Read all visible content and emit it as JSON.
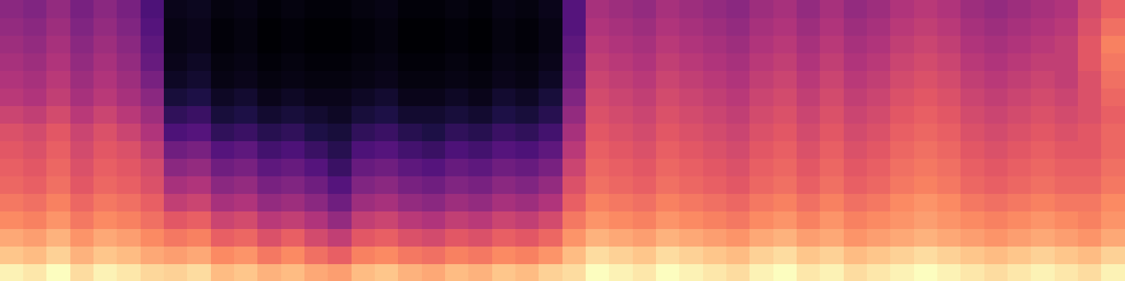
{
  "chart_data": {
    "type": "heatmap",
    "tick_labels": false,
    "cells": [
      [
        90,
        88,
        92,
        86,
        90,
        88,
        85,
        84,
        86,
        80,
        82,
        78,
        80,
        76,
        74,
        80,
        82,
        78,
        76,
        80,
        78,
        82,
        80,
        84,
        86,
        92,
        90,
        88,
        92,
        90,
        88,
        86,
        90,
        92,
        88,
        90,
        86,
        88,
        90,
        92,
        90,
        88,
        86,
        88,
        90,
        88,
        86,
        90
      ],
      [
        82,
        80,
        84,
        78,
        82,
        80,
        76,
        74,
        76,
        70,
        72,
        66,
        70,
        64,
        60,
        68,
        70,
        66,
        64,
        68,
        66,
        70,
        68,
        72,
        80,
        86,
        84,
        82,
        86,
        84,
        82,
        80,
        84,
        86,
        82,
        84,
        80,
        82,
        84,
        86,
        84,
        82,
        80,
        82,
        84,
        82,
        80,
        84
      ],
      [
        76,
        74,
        78,
        72,
        76,
        74,
        70,
        66,
        68,
        60,
        62,
        56,
        60,
        54,
        50,
        58,
        60,
        56,
        54,
        58,
        56,
        60,
        58,
        62,
        72,
        78,
        76,
        74,
        78,
        76,
        74,
        72,
        76,
        78,
        74,
        76,
        72,
        74,
        76,
        78,
        76,
        74,
        72,
        74,
        76,
        74,
        72,
        76
      ],
      [
        70,
        68,
        72,
        66,
        70,
        68,
        64,
        58,
        60,
        52,
        54,
        48,
        50,
        46,
        40,
        50,
        52,
        48,
        46,
        50,
        48,
        52,
        50,
        54,
        66,
        72,
        70,
        68,
        72,
        70,
        68,
        66,
        70,
        72,
        68,
        72,
        68,
        70,
        72,
        74,
        72,
        70,
        68,
        70,
        72,
        70,
        68,
        72
      ],
      [
        66,
        64,
        68,
        62,
        66,
        64,
        60,
        50,
        52,
        44,
        46,
        40,
        42,
        38,
        32,
        42,
        44,
        40,
        38,
        42,
        40,
        44,
        42,
        46,
        60,
        68,
        66,
        64,
        68,
        66,
        64,
        62,
        66,
        68,
        64,
        68,
        64,
        66,
        70,
        72,
        70,
        66,
        64,
        66,
        68,
        66,
        66,
        70
      ],
      [
        62,
        60,
        64,
        58,
        62,
        60,
        56,
        44,
        46,
        38,
        40,
        34,
        36,
        32,
        26,
        36,
        38,
        34,
        32,
        36,
        34,
        38,
        36,
        40,
        56,
        64,
        62,
        60,
        64,
        62,
        60,
        58,
        62,
        64,
        60,
        64,
        60,
        62,
        66,
        68,
        66,
        62,
        60,
        62,
        64,
        62,
        62,
        66
      ],
      [
        60,
        58,
        62,
        56,
        60,
        58,
        54,
        38,
        40,
        32,
        34,
        28,
        30,
        26,
        20,
        30,
        32,
        28,
        26,
        30,
        28,
        32,
        30,
        34,
        52,
        62,
        60,
        58,
        62,
        60,
        58,
        56,
        60,
        62,
        58,
        62,
        58,
        60,
        64,
        66,
        64,
        60,
        58,
        60,
        62,
        60,
        60,
        64
      ],
      [
        58,
        56,
        60,
        54,
        58,
        56,
        50,
        32,
        34,
        26,
        28,
        22,
        24,
        20,
        16,
        24,
        26,
        22,
        20,
        24,
        22,
        26,
        24,
        28,
        48,
        60,
        58,
        56,
        60,
        58,
        56,
        54,
        58,
        60,
        56,
        60,
        56,
        58,
        62,
        64,
        62,
        58,
        56,
        58,
        60,
        58,
        58,
        62
      ],
      [
        56,
        54,
        58,
        52,
        56,
        52,
        46,
        24,
        26,
        18,
        20,
        16,
        18,
        14,
        12,
        18,
        20,
        16,
        14,
        18,
        16,
        20,
        18,
        22,
        44,
        58,
        56,
        54,
        58,
        56,
        54,
        52,
        56,
        58,
        54,
        58,
        54,
        56,
        60,
        62,
        60,
        56,
        54,
        56,
        58,
        56,
        58,
        62
      ],
      [
        52,
        50,
        54,
        48,
        52,
        48,
        42,
        18,
        20,
        12,
        14,
        10,
        12,
        10,
        8,
        12,
        14,
        10,
        10,
        12,
        10,
        14,
        12,
        16,
        40,
        56,
        54,
        52,
        56,
        54,
        52,
        50,
        54,
        56,
        52,
        56,
        52,
        54,
        58,
        60,
        58,
        54,
        52,
        54,
        56,
        54,
        56,
        60
      ],
      [
        48,
        46,
        50,
        44,
        48,
        44,
        38,
        12,
        14,
        8,
        10,
        6,
        8,
        6,
        6,
        8,
        10,
        6,
        6,
        8,
        6,
        10,
        8,
        12,
        36,
        54,
        52,
        50,
        54,
        52,
        50,
        48,
        52,
        54,
        50,
        54,
        50,
        52,
        56,
        58,
        56,
        52,
        50,
        52,
        54,
        52,
        56,
        62
      ],
      [
        46,
        44,
        48,
        42,
        46,
        42,
        34,
        8,
        10,
        5,
        6,
        4,
        5,
        4,
        4,
        5,
        6,
        4,
        4,
        5,
        4,
        6,
        5,
        8,
        32,
        52,
        50,
        48,
        52,
        50,
        48,
        46,
        50,
        52,
        48,
        52,
        48,
        50,
        54,
        56,
        54,
        50,
        48,
        50,
        52,
        50,
        56,
        64
      ],
      [
        44,
        42,
        46,
        40,
        44,
        40,
        30,
        6,
        8,
        4,
        5,
        3,
        4,
        3,
        3,
        4,
        5,
        3,
        3,
        4,
        3,
        5,
        4,
        6,
        30,
        50,
        48,
        46,
        50,
        48,
        46,
        44,
        48,
        50,
        46,
        50,
        46,
        48,
        52,
        54,
        52,
        48,
        46,
        48,
        50,
        50,
        58,
        66
      ],
      [
        42,
        40,
        44,
        38,
        42,
        38,
        28,
        5,
        6,
        3,
        4,
        2,
        3,
        2,
        2,
        3,
        4,
        2,
        2,
        3,
        2,
        4,
        3,
        5,
        28,
        48,
        46,
        44,
        48,
        46,
        44,
        42,
        46,
        48,
        44,
        48,
        44,
        46,
        50,
        52,
        50,
        46,
        44,
        46,
        48,
        50,
        58,
        68
      ],
      [
        40,
        38,
        42,
        36,
        40,
        36,
        26,
        5,
        6,
        3,
        4,
        2,
        3,
        2,
        2,
        3,
        4,
        2,
        2,
        3,
        2,
        4,
        3,
        5,
        26,
        46,
        44,
        42,
        46,
        44,
        42,
        40,
        44,
        46,
        42,
        46,
        42,
        44,
        48,
        50,
        48,
        44,
        42,
        44,
        46,
        48,
        56,
        64
      ],
      [
        38,
        36,
        40,
        34,
        38,
        34,
        24,
        6,
        7,
        4,
        5,
        3,
        4,
        3,
        3,
        4,
        5,
        3,
        3,
        4,
        3,
        5,
        4,
        6,
        26,
        44,
        42,
        40,
        44,
        42,
        40,
        38,
        42,
        44,
        40,
        44,
        40,
        42,
        46,
        48,
        46,
        42,
        40,
        42,
        44,
        46,
        54,
        60
      ]
    ]
  }
}
